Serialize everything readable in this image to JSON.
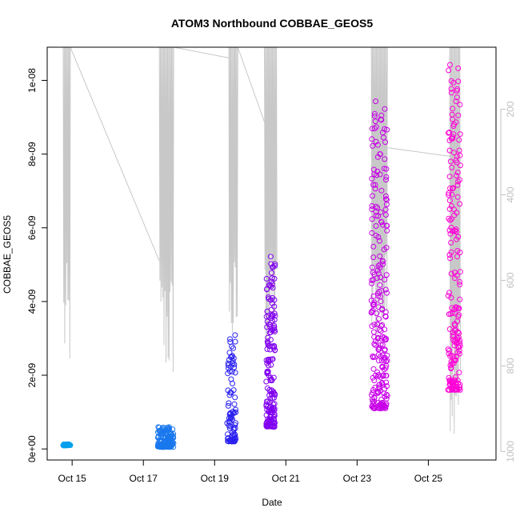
{
  "chart_data": {
    "type": "scatter",
    "title": "ATOM3 Northbound COBBAE_GEOS5",
    "xlabel": "Date",
    "ylabel": "COBBAE_GEOS5",
    "x_ticks": [
      "Oct 15",
      "Oct 17",
      "Oct 19",
      "Oct 21",
      "Oct 23",
      "Oct 25"
    ],
    "x_tick_values": [
      15,
      17,
      19,
      21,
      23,
      25
    ],
    "x_range": [
      14.3,
      26.9
    ],
    "y_ticks": [
      "0e+00",
      "2e-09",
      "4e-09",
      "6e-09",
      "8e-09",
      "1e-08"
    ],
    "y_tick_values": [
      0,
      2e-09,
      4e-09,
      6e-09,
      8e-09,
      1e-08
    ],
    "y_range": [
      -3e-10,
      1.09e-08
    ],
    "y2_ticks": [
      "200",
      "400",
      "600",
      "800",
      "1000"
    ],
    "y2_tick_values": [
      200,
      400,
      600,
      800,
      1000
    ],
    "y2_range_inverted": [
      1020,
      55
    ],
    "colors": {
      "series_start": "#00a0ee",
      "series_mid": "#2000f0",
      "series_end": "#ff00d8",
      "pressure_line": "#c8c8c8",
      "axis": "#000000",
      "right_axis": "#c0c0c0"
    },
    "clusters": [
      {
        "x": [
          14.75,
          14.95
        ],
        "y_low": 9e-11,
        "y_high": 1.3e-10,
        "count": 30,
        "color": "#00a0ee"
      },
      {
        "x": [
          17.4,
          17.85
        ],
        "y_low": 5e-11,
        "y_high": 6e-10,
        "count": 130,
        "color": "#1a78ee"
      },
      {
        "x": [
          19.35,
          19.6
        ],
        "y_low": 2e-10,
        "y_high": 3.1e-09,
        "count": 90,
        "color": "#2a20f0"
      },
      {
        "x": [
          20.45,
          20.7
        ],
        "y_low": 6e-10,
        "y_high": 5.3e-09,
        "count": 170,
        "color": "#8000f0"
      },
      {
        "x": [
          23.4,
          23.85
        ],
        "y_low": 1.1e-09,
        "y_high": 9.5e-09,
        "count": 240,
        "color": "#c800e8"
      },
      {
        "x": [
          25.55,
          25.9
        ],
        "y_low": 1.6e-09,
        "y_high": 1.05e-08,
        "count": 190,
        "color": "#ff00d8"
      }
    ],
    "pressure_profiles": [
      {
        "x": [
          14.75,
          14.95
        ],
        "p_top": 55,
        "p_bottom": 830
      },
      {
        "x": [
          17.45,
          17.85
        ],
        "p_top": 55,
        "p_bottom": 845
      },
      {
        "x": [
          19.4,
          19.65
        ],
        "p_top": 55,
        "p_bottom": 795
      },
      {
        "x": [
          20.4,
          20.75
        ],
        "p_top": 55,
        "p_bottom": 785
      },
      {
        "x": [
          23.4,
          23.85
        ],
        "p_top": 55,
        "p_bottom": 780
      },
      {
        "x": [
          25.6,
          25.9
        ],
        "p_top": 55,
        "p_bottom": 960
      }
    ],
    "pressure_connectors": [
      {
        "from": [
          14.95,
          55
        ],
        "to": [
          17.45,
          555
        ]
      },
      {
        "from": [
          17.85,
          55
        ],
        "to": [
          19.4,
          80
        ]
      },
      {
        "from": [
          19.65,
          55
        ],
        "to": [
          20.4,
          230
        ]
      },
      {
        "from": [
          23.85,
          290
        ],
        "to": [
          25.6,
          310
        ]
      }
    ],
    "grid": false,
    "legend": "none"
  }
}
